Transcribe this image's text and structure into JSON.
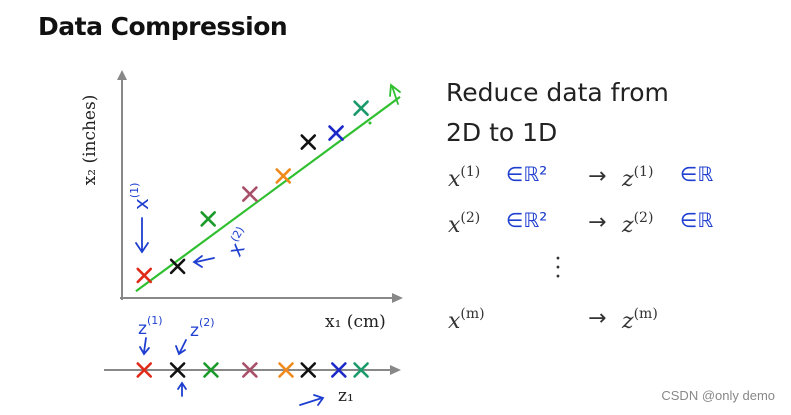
{
  "title": "Data Compression",
  "heading": {
    "line1": "Reduce data from",
    "line2": "2D to 1D"
  },
  "mapping": [
    {
      "x": "x",
      "x_sup": "(1)",
      "x_space": "∈ℝ²",
      "arrow": "→",
      "z": "z",
      "z_sup": "(1)",
      "z_space": "∈ℝ"
    },
    {
      "x": "x",
      "x_sup": "(2)",
      "x_space": "∈ℝ²",
      "arrow": "→",
      "z": "z",
      "z_sup": "(2)",
      "z_space": "∈ℝ"
    },
    {
      "x": "x",
      "x_sup": "(m)",
      "arrow": "→",
      "z": "z",
      "z_sup": "(m)"
    }
  ],
  "axes": {
    "x_label": "x₁ (cm)",
    "y_label": "x₂ (inches)",
    "z_label": "z₁"
  },
  "annotations": {
    "x1_note": {
      "base": "x",
      "sup": "(1)"
    },
    "x2_note": {
      "base": "x",
      "sup": "(2)"
    },
    "z1_note": {
      "base": "z",
      "sup": "(1)"
    },
    "z2_note": {
      "base": "z",
      "sup": "(2)"
    }
  },
  "watermark": "CSDN @only demo",
  "colors": {
    "line": "#2fbf2f",
    "ink": "#1f3fd0",
    "red": "#e02a1a",
    "black": "#111111",
    "green": "#1a9a2a",
    "mauve": "#a8506a",
    "orange": "#f08a1c",
    "blue": "#1c28c8",
    "teal": "#1a9a6a"
  },
  "chart_data": {
    "type": "scatter",
    "title": "",
    "xlabel": "x₁ (cm)",
    "ylabel": "x₂ (inches)",
    "xlim": [
      0,
      10
    ],
    "ylim": [
      0,
      10
    ],
    "fit_line": {
      "x": [
        0.5,
        10
      ],
      "y": [
        0.3,
        8.9
      ]
    },
    "points": [
      {
        "x": 0.8,
        "y": 1.0,
        "color": "red"
      },
      {
        "x": 2.0,
        "y": 1.4,
        "color": "black"
      },
      {
        "x": 3.1,
        "y": 3.5,
        "color": "green"
      },
      {
        "x": 4.6,
        "y": 4.6,
        "color": "mauve"
      },
      {
        "x": 5.8,
        "y": 5.4,
        "color": "orange"
      },
      {
        "x": 6.7,
        "y": 6.9,
        "color": "black"
      },
      {
        "x": 7.7,
        "y": 7.3,
        "color": "blue"
      },
      {
        "x": 8.6,
        "y": 8.4,
        "color": "teal"
      }
    ],
    "projection_z": [
      {
        "z": 0.8,
        "color": "red"
      },
      {
        "z": 2.0,
        "color": "black"
      },
      {
        "z": 3.2,
        "color": "green"
      },
      {
        "z": 4.6,
        "color": "mauve"
      },
      {
        "z": 5.9,
        "color": "orange"
      },
      {
        "z": 6.7,
        "color": "black"
      },
      {
        "z": 7.8,
        "color": "blue"
      },
      {
        "z": 8.6,
        "color": "teal"
      }
    ]
  }
}
